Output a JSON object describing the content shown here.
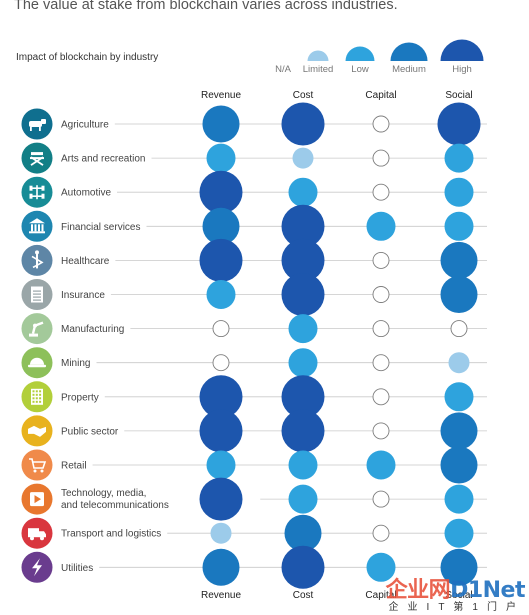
{
  "page_title": "The value at stake from blockchain varies across industries.",
  "chart_data": {
    "type": "bubble-matrix",
    "title": "Impact of blockchain by industry",
    "columns": [
      "Revenue",
      "Cost",
      "Capital",
      "Social"
    ],
    "levels": [
      "N/A",
      "Limited",
      "Low",
      "Medium",
      "High"
    ],
    "level_colors": {
      "N/A": "#ffffff",
      "Limited": "#9ccbea",
      "Low": "#2ea3dd",
      "Medium": "#1a78bf",
      "High": "#1d56ad"
    },
    "legend": [
      "N/A",
      "Limited",
      "Low",
      "Medium",
      "High"
    ],
    "rows": [
      {
        "industry": "Agriculture",
        "icon": "cow-icon",
        "icon_color": "#0f6f8f",
        "values": [
          "Medium",
          "High",
          "N/A",
          "High"
        ]
      },
      {
        "industry": "Arts and recreation",
        "icon": "directors-chair-icon",
        "icon_color": "#127f86",
        "values": [
          "Low",
          "Limited",
          "N/A",
          "Low"
        ]
      },
      {
        "industry": "Automotive",
        "icon": "chassis-icon",
        "icon_color": "#178c96",
        "values": [
          "High",
          "Low",
          "N/A",
          "Low"
        ]
      },
      {
        "industry": "Financial services",
        "icon": "bank-icon",
        "icon_color": "#1e86b0",
        "values": [
          "Medium",
          "High",
          "Low",
          "Low"
        ]
      },
      {
        "industry": "Healthcare",
        "icon": "caduceus-icon",
        "icon_color": "#5e86a6",
        "values": [
          "High",
          "High",
          "N/A",
          "Medium"
        ]
      },
      {
        "industry": "Insurance",
        "icon": "document-icon",
        "icon_color": "#9aa6a8",
        "values": [
          "Low",
          "High",
          "N/A",
          "Medium"
        ]
      },
      {
        "industry": "Manufacturing",
        "icon": "robot-arm-icon",
        "icon_color": "#a3c99a",
        "values": [
          "N/A",
          "Low",
          "N/A",
          "N/A"
        ]
      },
      {
        "industry": "Mining",
        "icon": "hard-hat-icon",
        "icon_color": "#8dc05a",
        "values": [
          "N/A",
          "Low",
          "N/A",
          "Limited"
        ]
      },
      {
        "industry": "Property",
        "icon": "building-icon",
        "icon_color": "#b2cf3a",
        "values": [
          "High",
          "High",
          "N/A",
          "Low"
        ]
      },
      {
        "industry": "Public sector",
        "icon": "handshake-icon",
        "icon_color": "#e8b21e",
        "values": [
          "High",
          "High",
          "N/A",
          "Medium"
        ]
      },
      {
        "industry": "Retail",
        "icon": "cart-icon",
        "icon_color": "#f08a4a",
        "values": [
          "Low",
          "Low",
          "Low",
          "Medium"
        ]
      },
      {
        "industry": "Technology, media,\nand telecommunications",
        "icon": "media-player-icon",
        "icon_color": "#e8772e",
        "values": [
          "High",
          "Low",
          "N/A",
          "Low"
        ]
      },
      {
        "industry": "Transport and logistics",
        "icon": "truck-icon",
        "icon_color": "#d9363e",
        "values": [
          "Limited",
          "Medium",
          "N/A",
          "Low"
        ]
      },
      {
        "industry": "Utilities",
        "icon": "lightning-icon",
        "icon_color": "#6a3c8e",
        "values": [
          "Medium",
          "High",
          "Low",
          "Medium"
        ]
      }
    ]
  },
  "watermark": {
    "logo_a": "企业网",
    "logo_b": "D1Net",
    "tagline": "企业IT第1门户"
  }
}
